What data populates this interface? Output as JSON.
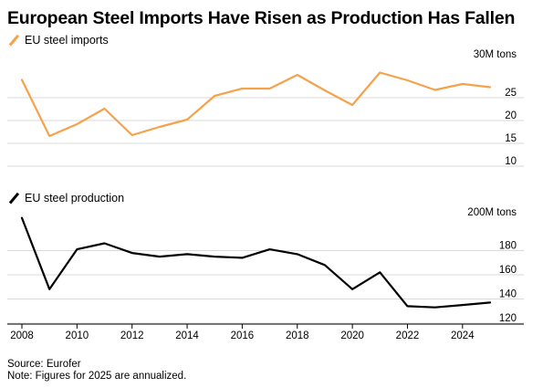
{
  "title": "European Steel Imports Have Risen as Production Has Fallen",
  "source": "Source: Eurofer",
  "note": "Note: Figures for 2025 are annualized.",
  "colors": {
    "imports": "#f5a24b",
    "production": "#000000",
    "grid": "#d9d9d9"
  },
  "chart_data": [
    {
      "type": "line",
      "legend": "EU steel imports",
      "unit_label": "30M tons",
      "x": [
        2008,
        2009,
        2010,
        2011,
        2012,
        2013,
        2014,
        2015,
        2016,
        2017,
        2018,
        2019,
        2020,
        2021,
        2022,
        2023,
        2024,
        2025
      ],
      "series": [
        {
          "name": "EU steel imports",
          "values": [
            26.5,
            14.2,
            16.8,
            20.2,
            14.4,
            16.2,
            17.8,
            23.0,
            24.6,
            24.6,
            27.6,
            24.2,
            21.0,
            28.1,
            26.4,
            24.3,
            25.6,
            24.9
          ]
        }
      ],
      "ylim": [
        10,
        30
      ],
      "yticks": [
        10,
        15,
        20,
        25
      ],
      "ytick_labels": [
        "10",
        "15",
        "20",
        "25"
      ],
      "grid": true,
      "legend_position": "top-left"
    },
    {
      "type": "line",
      "legend": "EU steel production",
      "unit_label": "200M tons",
      "x": [
        2008,
        2009,
        2010,
        2011,
        2012,
        2013,
        2014,
        2015,
        2016,
        2017,
        2018,
        2019,
        2020,
        2021,
        2022,
        2023,
        2024,
        2025
      ],
      "series": [
        {
          "name": "EU steel production",
          "values": [
            198,
            139,
            172,
            177,
            169,
            166,
            168,
            166,
            165,
            172,
            168,
            159,
            139,
            153,
            125,
            124,
            126,
            128
          ]
        }
      ],
      "ylim": [
        120,
        200
      ],
      "yticks": [
        120,
        140,
        160,
        180
      ],
      "ytick_labels": [
        "120",
        "140",
        "160",
        "180"
      ],
      "xticks": [
        2008,
        2010,
        2012,
        2014,
        2016,
        2018,
        2020,
        2022,
        2024
      ],
      "xtick_labels": [
        "2008",
        "2010",
        "2012",
        "2014",
        "2016",
        "2018",
        "2020",
        "2022",
        "2024"
      ],
      "grid": true,
      "legend_position": "top-left"
    }
  ]
}
